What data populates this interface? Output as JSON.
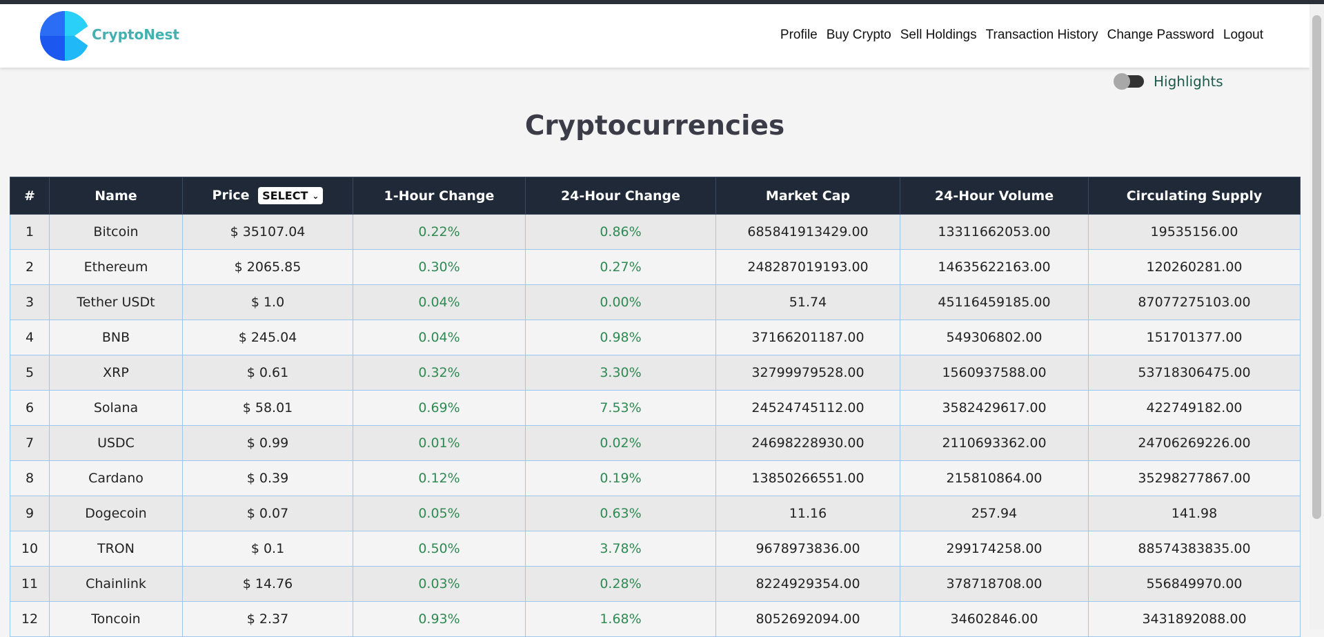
{
  "brand": {
    "name": "CryptoNest"
  },
  "nav": {
    "links": [
      "Profile",
      "Buy Crypto",
      "Sell Holdings",
      "Transaction History",
      "Change Password",
      "Logout"
    ]
  },
  "toggle": {
    "label": "Highlights",
    "state": "off"
  },
  "page": {
    "title": "Cryptocurrencies"
  },
  "table": {
    "headers": {
      "rank": "#",
      "name": "Name",
      "price": "Price",
      "change_1h": "1-Hour Change",
      "change_24h": "24-Hour Change",
      "market_cap": "Market Cap",
      "volume_24h": "24-Hour Volume",
      "supply": "Circulating Supply"
    },
    "price_select": {
      "value": "SELECT"
    },
    "rows": [
      {
        "rank": "1",
        "name": "Bitcoin",
        "price": "$ 35107.04",
        "change_1h": "0.22%",
        "change_24h": "0.86%",
        "market_cap": "685841913429.00",
        "volume_24h": "13311662053.00",
        "supply": "19535156.00"
      },
      {
        "rank": "2",
        "name": "Ethereum",
        "price": "$ 2065.85",
        "change_1h": "0.30%",
        "change_24h": "0.27%",
        "market_cap": "248287019193.00",
        "volume_24h": "14635622163.00",
        "supply": "120260281.00"
      },
      {
        "rank": "3",
        "name": "Tether USDt",
        "price": "$ 1.0",
        "change_1h": "0.04%",
        "change_24h": "0.00%",
        "market_cap": "51.74",
        "volume_24h": "45116459185.00",
        "supply": "87077275103.00"
      },
      {
        "rank": "4",
        "name": "BNB",
        "price": "$ 245.04",
        "change_1h": "0.04%",
        "change_24h": "0.98%",
        "market_cap": "37166201187.00",
        "volume_24h": "549306802.00",
        "supply": "151701377.00"
      },
      {
        "rank": "5",
        "name": "XRP",
        "price": "$ 0.61",
        "change_1h": "0.32%",
        "change_24h": "3.30%",
        "market_cap": "32799979528.00",
        "volume_24h": "1560937588.00",
        "supply": "53718306475.00"
      },
      {
        "rank": "6",
        "name": "Solana",
        "price": "$ 58.01",
        "change_1h": "0.69%",
        "change_24h": "7.53%",
        "market_cap": "24524745112.00",
        "volume_24h": "3582429617.00",
        "supply": "422749182.00"
      },
      {
        "rank": "7",
        "name": "USDC",
        "price": "$ 0.99",
        "change_1h": "0.01%",
        "change_24h": "0.02%",
        "market_cap": "24698228930.00",
        "volume_24h": "2110693362.00",
        "supply": "24706269226.00"
      },
      {
        "rank": "8",
        "name": "Cardano",
        "price": "$ 0.39",
        "change_1h": "0.12%",
        "change_24h": "0.19%",
        "market_cap": "13850266551.00",
        "volume_24h": "215810864.00",
        "supply": "35298277867.00"
      },
      {
        "rank": "9",
        "name": "Dogecoin",
        "price": "$ 0.07",
        "change_1h": "0.05%",
        "change_24h": "0.63%",
        "market_cap": "11.16",
        "volume_24h": "257.94",
        "supply": "141.98"
      },
      {
        "rank": "10",
        "name": "TRON",
        "price": "$ 0.1",
        "change_1h": "0.50%",
        "change_24h": "3.78%",
        "market_cap": "9678973836.00",
        "volume_24h": "299174258.00",
        "supply": "88574383835.00"
      },
      {
        "rank": "11",
        "name": "Chainlink",
        "price": "$ 14.76",
        "change_1h": "0.03%",
        "change_24h": "0.28%",
        "market_cap": "8224929354.00",
        "volume_24h": "378718708.00",
        "supply": "556849970.00"
      },
      {
        "rank": "12",
        "name": "Toncoin",
        "price": "$ 2.37",
        "change_1h": "0.93%",
        "change_24h": "1.68%",
        "market_cap": "8052692094.00",
        "volume_24h": "34602846.00",
        "supply": "3431892088.00"
      }
    ]
  },
  "colors": {
    "header_bg": "#1f2937",
    "positive": "#2e8a52",
    "brand": "#45b0b0",
    "row_border": "#9cc5ef"
  }
}
